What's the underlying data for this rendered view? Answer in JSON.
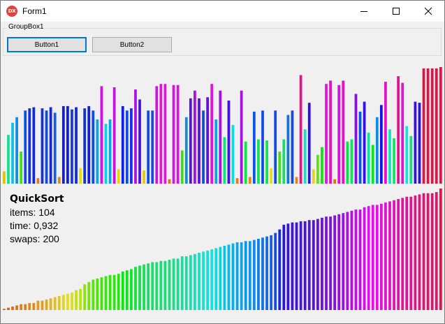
{
  "window": {
    "title": "Form1",
    "app_icon_text": "DX",
    "minimize_icon": "minimize-icon",
    "maximize_icon": "maximize-icon",
    "close_icon": "close-icon"
  },
  "groupbox": {
    "label": "GroupBox1",
    "button1_label": "Button1",
    "button2_label": "Button2"
  },
  "info": {
    "algorithm": "QuickSort",
    "items_text": "items: 104",
    "time_text": "time: 0,932",
    "swaps_text": "swaps: 200"
  },
  "colors": {
    "focus_border": "#0078d7",
    "close_icon_color": "#e0433e"
  },
  "chart_data": [
    {
      "type": "bar",
      "role": "unsorted",
      "ylim": [
        0,
        104
      ],
      "values": [
        11,
        44,
        55,
        60,
        29,
        66,
        68,
        69,
        5,
        68,
        66,
        69,
        64,
        6,
        70,
        70,
        67,
        69,
        14,
        68,
        70,
        66,
        58,
        88,
        54,
        58,
        87,
        13,
        70,
        66,
        68,
        85,
        76,
        12,
        66,
        66,
        88,
        90,
        90,
        4,
        89,
        89,
        30,
        60,
        77,
        84,
        77,
        66,
        78,
        90,
        58,
        84,
        42,
        75,
        53,
        5,
        84,
        38,
        6,
        65,
        40,
        66,
        39,
        14,
        66,
        29,
        40,
        62,
        66,
        6,
        98,
        49,
        73,
        13,
        26,
        33,
        90,
        93,
        4,
        89,
        93,
        38,
        40,
        81,
        65,
        74,
        46,
        35,
        60,
        71,
        92,
        49,
        41,
        97,
        91,
        52,
        43,
        74,
        73,
        104,
        104,
        104,
        104,
        108
      ]
    },
    {
      "type": "bar",
      "role": "sorted",
      "ylim": [
        0,
        104
      ],
      "values": [
        1,
        2,
        3,
        4,
        5,
        5,
        6,
        6,
        8,
        8,
        9,
        10,
        11,
        12,
        13,
        14,
        15,
        17,
        18,
        22,
        24,
        26,
        27,
        28,
        29,
        30,
        30,
        31,
        33,
        34,
        35,
        37,
        38,
        39,
        40,
        41,
        41,
        42,
        42,
        43,
        44,
        44,
        46,
        46,
        47,
        48,
        49,
        50,
        51,
        52,
        53,
        54,
        55,
        56,
        57,
        58,
        58,
        59,
        59,
        60,
        61,
        62,
        63,
        64,
        66,
        69,
        73,
        74,
        75,
        75,
        76,
        76,
        77,
        77,
        78,
        79,
        80,
        80,
        81,
        82,
        83,
        84,
        85,
        86,
        86,
        88,
        89,
        90,
        90,
        91,
        92,
        93,
        94,
        95,
        96,
        97,
        97,
        98,
        99,
        100,
        100,
        100,
        101,
        104
      ]
    }
  ]
}
